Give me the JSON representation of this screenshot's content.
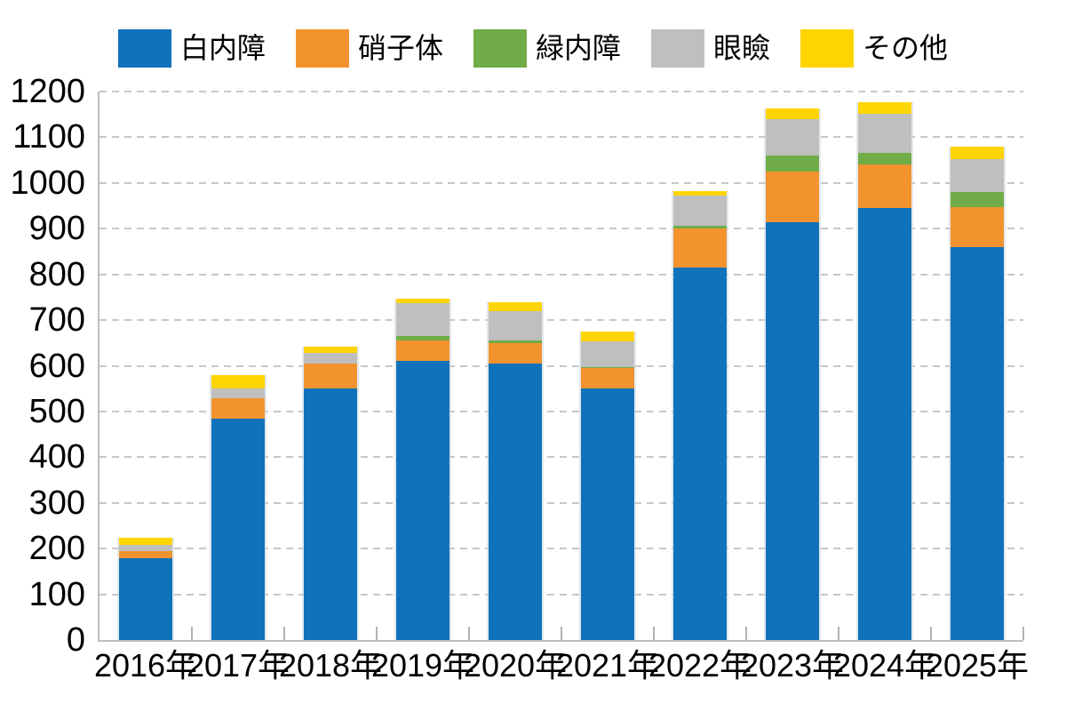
{
  "chart_data": {
    "type": "bar",
    "stacked": true,
    "title": "",
    "xlabel": "",
    "ylabel": "",
    "categories": [
      "2016年",
      "2017年",
      "2018年",
      "2019年",
      "2020年",
      "2021年",
      "2022年",
      "2023年",
      "2024年",
      "2025年"
    ],
    "series": [
      {
        "name": "白内障",
        "color": "#1072ba",
        "values": [
          180,
          485,
          550,
          610,
          605,
          550,
          815,
          915,
          945,
          860
        ]
      },
      {
        "name": "硝子体",
        "color": "#f2932e",
        "values": [
          15,
          45,
          55,
          45,
          45,
          45,
          85,
          110,
          95,
          88
        ]
      },
      {
        "name": "緑内障",
        "color": "#70ac47",
        "values": [
          0,
          0,
          0,
          10,
          5,
          3,
          7,
          35,
          25,
          32
        ]
      },
      {
        "name": "眼瞼",
        "color": "#bfbfbf",
        "values": [
          13,
          20,
          23,
          72,
          65,
          56,
          65,
          80,
          87,
          73
        ]
      },
      {
        "name": "その他",
        "color": "#ffd500",
        "values": [
          15,
          30,
          13,
          11,
          20,
          22,
          11,
          23,
          25,
          27
        ]
      }
    ],
    "ylim": [
      0,
      1200
    ],
    "yticks": [
      0,
      100,
      200,
      300,
      400,
      500,
      600,
      700,
      800,
      900,
      1000,
      1100,
      1200
    ],
    "grid": "dashed-horizontal",
    "legend_position": "top",
    "axis_color": "#bfbfbf",
    "gridline_color": "#c7c7c7",
    "text_color": "#000000",
    "background_color": "#ffffff"
  }
}
